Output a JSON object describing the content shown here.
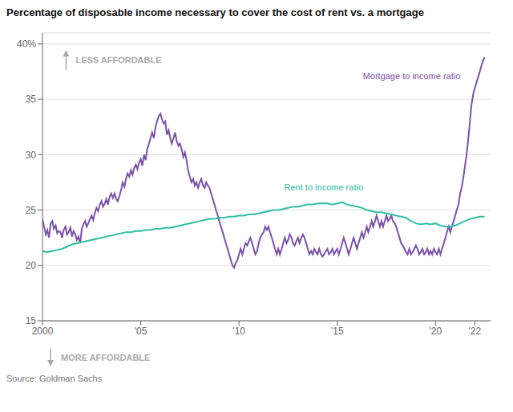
{
  "chart_data": {
    "type": "line",
    "title": "Percentage of disposable income necessary to cover the cost of rent vs. a mortgage",
    "annotations": [
      "LESS AFFORDABLE",
      "MORE AFFORDABLE",
      "Source: Goldman Sachs"
    ],
    "xlim": [
      2000,
      2022.8
    ],
    "xticks": [
      2000,
      {
        "value": 2005,
        "label": "'05"
      },
      {
        "value": 2010,
        "label": "'10"
      },
      {
        "value": 2015,
        "label": "'15"
      },
      {
        "value": 2020,
        "label": "'20"
      },
      {
        "value": 2022,
        "label": "'22"
      }
    ],
    "ylim": [
      15,
      41
    ],
    "yticks": [
      15,
      20,
      25,
      30,
      35,
      {
        "value": 40,
        "label": "40%"
      }
    ],
    "grid": true,
    "series": [
      {
        "name": "Mortgage to income ratio",
        "color": "#7B52AB",
        "x": [
          2000.0,
          2000.08,
          2000.17,
          2000.25,
          2000.33,
          2000.42,
          2000.5,
          2000.58,
          2000.67,
          2000.75,
          2000.83,
          2000.92,
          2001.0,
          2001.08,
          2001.17,
          2001.25,
          2001.33,
          2001.42,
          2001.5,
          2001.58,
          2001.67,
          2001.75,
          2001.83,
          2001.92,
          2002.0,
          2002.08,
          2002.17,
          2002.25,
          2002.33,
          2002.42,
          2002.5,
          2002.58,
          2002.67,
          2002.75,
          2002.83,
          2002.92,
          2003.0,
          2003.08,
          2003.17,
          2003.25,
          2003.33,
          2003.42,
          2003.5,
          2003.58,
          2003.67,
          2003.75,
          2003.83,
          2003.92,
          2004.0,
          2004.08,
          2004.17,
          2004.25,
          2004.33,
          2004.42,
          2004.5,
          2004.58,
          2004.67,
          2004.75,
          2004.83,
          2004.92,
          2005.0,
          2005.08,
          2005.17,
          2005.25,
          2005.33,
          2005.42,
          2005.5,
          2005.58,
          2005.67,
          2005.75,
          2005.83,
          2005.92,
          2006.0,
          2006.08,
          2006.17,
          2006.25,
          2006.33,
          2006.42,
          2006.5,
          2006.58,
          2006.67,
          2006.75,
          2006.83,
          2006.92,
          2007.0,
          2007.08,
          2007.17,
          2007.25,
          2007.33,
          2007.42,
          2007.5,
          2007.58,
          2007.67,
          2007.75,
          2007.83,
          2007.92,
          2008.0,
          2008.08,
          2008.17,
          2008.25,
          2008.33,
          2008.42,
          2008.5,
          2008.58,
          2008.67,
          2008.75,
          2008.83,
          2008.92,
          2009.0,
          2009.08,
          2009.17,
          2009.25,
          2009.33,
          2009.42,
          2009.5,
          2009.58,
          2009.67,
          2009.75,
          2009.83,
          2009.92,
          2010.0,
          2010.08,
          2010.17,
          2010.25,
          2010.33,
          2010.42,
          2010.5,
          2010.58,
          2010.67,
          2010.75,
          2010.83,
          2010.92,
          2011.0,
          2011.08,
          2011.17,
          2011.25,
          2011.33,
          2011.42,
          2011.5,
          2011.58,
          2011.67,
          2011.75,
          2011.83,
          2011.92,
          2012.0,
          2012.08,
          2012.17,
          2012.25,
          2012.33,
          2012.42,
          2012.5,
          2012.58,
          2012.67,
          2012.75,
          2012.83,
          2012.92,
          2013.0,
          2013.08,
          2013.17,
          2013.25,
          2013.33,
          2013.42,
          2013.5,
          2013.58,
          2013.67,
          2013.75,
          2013.83,
          2013.92,
          2014.0,
          2014.08,
          2014.17,
          2014.25,
          2014.33,
          2014.42,
          2014.5,
          2014.58,
          2014.67,
          2014.75,
          2014.83,
          2014.92,
          2015.0,
          2015.08,
          2015.17,
          2015.25,
          2015.33,
          2015.42,
          2015.5,
          2015.58,
          2015.67,
          2015.75,
          2015.83,
          2015.92,
          2016.0,
          2016.08,
          2016.17,
          2016.25,
          2016.33,
          2016.42,
          2016.5,
          2016.58,
          2016.67,
          2016.75,
          2016.83,
          2016.92,
          2017.0,
          2017.08,
          2017.17,
          2017.25,
          2017.33,
          2017.42,
          2017.5,
          2017.58,
          2017.67,
          2017.75,
          2017.83,
          2017.92,
          2018.0,
          2018.08,
          2018.17,
          2018.25,
          2018.33,
          2018.42,
          2018.5,
          2018.58,
          2018.67,
          2018.75,
          2018.83,
          2018.92,
          2019.0,
          2019.08,
          2019.17,
          2019.25,
          2019.33,
          2019.42,
          2019.5,
          2019.58,
          2019.67,
          2019.75,
          2019.83,
          2019.92,
          2020.0,
          2020.08,
          2020.17,
          2020.25,
          2020.33,
          2020.42,
          2020.5,
          2020.58,
          2020.67,
          2020.75,
          2020.83,
          2020.92,
          2021.0,
          2021.08,
          2021.17,
          2021.25,
          2021.33,
          2021.42,
          2021.5,
          2021.58,
          2021.67,
          2021.75,
          2021.83,
          2021.92,
          2022.0,
          2022.08,
          2022.17,
          2022.25,
          2022.33,
          2022.42,
          2022.5
        ],
        "values": [
          24.2,
          23.5,
          22.8,
          23.2,
          22.5,
          23.8,
          24.0,
          23.3,
          23.6,
          22.9,
          23.1,
          23.0,
          22.5,
          23.2,
          23.5,
          22.8,
          23.0,
          23.4,
          22.6,
          23.1,
          22.8,
          22.3,
          22.6,
          22.0,
          23.3,
          23.7,
          24.0,
          23.5,
          23.8,
          24.2,
          24.5,
          24.1,
          24.8,
          25.2,
          24.9,
          25.5,
          25.8,
          25.3,
          25.6,
          26.0,
          25.5,
          26.2,
          26.5,
          26.1,
          26.5,
          26.0,
          25.8,
          26.3,
          26.8,
          27.5,
          27.1,
          27.8,
          28.3,
          28.0,
          28.6,
          28.2,
          28.8,
          29.1,
          28.7,
          29.3,
          29.6,
          29.0,
          30.0,
          29.5,
          30.5,
          31.0,
          31.5,
          32.0,
          31.5,
          32.5,
          33.0,
          33.5,
          33.7,
          33.2,
          32.8,
          33.0,
          31.8,
          32.2,
          31.5,
          31.0,
          31.5,
          32.0,
          31.2,
          30.8,
          31.0,
          30.5,
          29.8,
          30.2,
          29.5,
          28.5,
          28.0,
          27.5,
          27.8,
          27.2,
          27.5,
          27.0,
          27.5,
          27.8,
          27.2,
          27.0,
          27.5,
          27.2,
          27.0,
          26.5,
          26.0,
          25.5,
          25.0,
          24.5,
          24.0,
          23.5,
          23.0,
          22.5,
          22.0,
          21.5,
          21.0,
          20.5,
          20.0,
          19.8,
          20.2,
          20.5,
          21.0,
          21.5,
          21.0,
          21.5,
          22.0,
          21.8,
          22.2,
          22.5,
          22.0,
          21.5,
          21.0,
          21.3,
          22.0,
          22.5,
          22.8,
          23.0,
          23.5,
          23.2,
          23.5,
          23.0,
          22.5,
          22.0,
          21.5,
          21.0,
          21.5,
          21.0,
          21.5,
          22.0,
          22.5,
          22.0,
          22.3,
          22.8,
          22.5,
          22.0,
          21.8,
          22.2,
          22.5,
          22.0,
          22.5,
          22.8,
          22.5,
          22.0,
          21.5,
          21.0,
          21.3,
          21.0,
          21.5,
          21.2,
          21.0,
          21.5,
          21.0,
          20.8,
          21.0,
          21.3,
          21.5,
          21.0,
          21.2,
          21.5,
          21.0,
          21.3,
          21.5,
          21.0,
          21.5,
          22.0,
          22.5,
          22.0,
          21.5,
          21.0,
          21.5,
          22.0,
          22.5,
          22.0,
          21.5,
          22.0,
          22.5,
          23.0,
          22.5,
          23.0,
          23.5,
          23.0,
          23.5,
          24.0,
          23.5,
          24.0,
          24.5,
          24.0,
          23.5,
          24.0,
          23.5,
          24.0,
          24.5,
          24.0,
          24.2,
          24.5,
          24.0,
          23.8,
          23.5,
          23.0,
          22.5,
          22.0,
          21.8,
          21.5,
          21.2,
          21.0,
          21.5,
          21.0,
          21.2,
          21.5,
          21.8,
          21.5,
          21.0,
          21.2,
          21.5,
          21.0,
          21.2,
          21.5,
          21.0,
          21.3,
          21.0,
          21.5,
          21.2,
          21.0,
          21.5,
          21.0,
          21.5,
          22.0,
          22.5,
          23.0,
          23.5,
          23.0,
          23.5,
          24.0,
          24.5,
          25.0,
          25.5,
          26.5,
          27.0,
          28.0,
          29.0,
          30.0,
          31.5,
          33.0,
          34.5,
          35.5,
          36.0,
          36.5,
          37.0,
          37.5,
          38.0,
          38.5,
          38.8
        ]
      },
      {
        "name": "Rent to income ratio",
        "color": "#2EBFA5",
        "x": [
          2000.0,
          2000.25,
          2000.5,
          2000.75,
          2001.0,
          2001.25,
          2001.5,
          2001.75,
          2002.0,
          2002.25,
          2002.5,
          2002.75,
          2003.0,
          2003.25,
          2003.5,
          2003.75,
          2004.0,
          2004.25,
          2004.5,
          2004.75,
          2005.0,
          2005.25,
          2005.5,
          2005.75,
          2006.0,
          2006.25,
          2006.5,
          2006.75,
          2007.0,
          2007.25,
          2007.5,
          2007.75,
          2008.0,
          2008.25,
          2008.5,
          2008.75,
          2009.0,
          2009.25,
          2009.5,
          2009.75,
          2010.0,
          2010.25,
          2010.5,
          2010.75,
          2011.0,
          2011.25,
          2011.5,
          2011.75,
          2012.0,
          2012.25,
          2012.5,
          2012.75,
          2013.0,
          2013.25,
          2013.5,
          2013.75,
          2014.0,
          2014.25,
          2014.5,
          2014.75,
          2015.0,
          2015.25,
          2015.5,
          2015.75,
          2016.0,
          2016.25,
          2016.5,
          2016.75,
          2017.0,
          2017.25,
          2017.5,
          2017.75,
          2018.0,
          2018.25,
          2018.5,
          2018.75,
          2019.0,
          2019.25,
          2019.5,
          2019.75,
          2020.0,
          2020.25,
          2020.5,
          2020.75,
          2021.0,
          2021.25,
          2021.5,
          2021.75,
          2022.0,
          2022.25,
          2022.5
        ],
        "values": [
          21.3,
          21.2,
          21.3,
          21.4,
          21.5,
          21.7,
          21.9,
          22.0,
          22.1,
          22.2,
          22.3,
          22.4,
          22.5,
          22.6,
          22.7,
          22.8,
          22.9,
          23.0,
          23.0,
          23.1,
          23.1,
          23.2,
          23.2,
          23.3,
          23.3,
          23.4,
          23.4,
          23.5,
          23.6,
          23.7,
          23.8,
          23.9,
          24.0,
          24.1,
          24.2,
          24.2,
          24.3,
          24.3,
          24.4,
          24.4,
          24.5,
          24.5,
          24.6,
          24.6,
          24.7,
          24.8,
          24.9,
          25.0,
          25.0,
          25.1,
          25.2,
          25.3,
          25.3,
          25.4,
          25.5,
          25.5,
          25.6,
          25.6,
          25.6,
          25.5,
          25.6,
          25.7,
          25.5,
          25.4,
          25.3,
          25.2,
          25.0,
          24.9,
          24.8,
          24.8,
          24.7,
          24.6,
          24.5,
          24.4,
          24.3,
          24.0,
          23.8,
          23.7,
          23.8,
          23.7,
          23.8,
          23.6,
          23.5,
          23.5,
          23.6,
          23.8,
          24.0,
          24.2,
          24.3,
          24.4,
          24.4
        ]
      }
    ]
  }
}
